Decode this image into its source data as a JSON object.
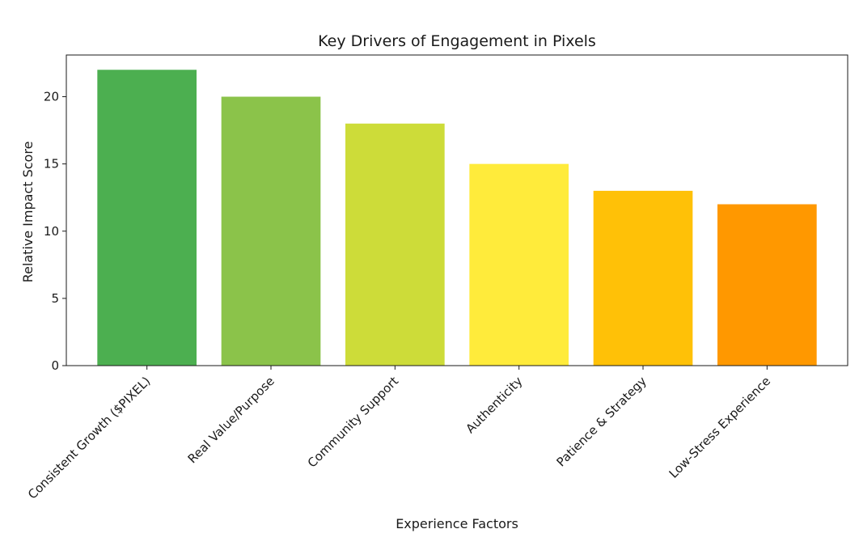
{
  "chart_data": {
    "type": "bar",
    "title": "Key Drivers of Engagement in Pixels",
    "xlabel": "Experience Factors",
    "ylabel": "Relative Impact Score",
    "categories": [
      "Consistent Growth ($PIXEL)",
      "Real Value/Purpose",
      "Community Support",
      "Authenticity",
      "Patience & Strategy",
      "Low-Stress Experience"
    ],
    "values": [
      22,
      20,
      18,
      15,
      13,
      12
    ],
    "colors": [
      "#4caf50",
      "#8bc34a",
      "#cddc39",
      "#ffeb3b",
      "#ffc107",
      "#ff9800"
    ],
    "ylim": [
      0,
      23.1
    ],
    "yticks": [
      0,
      5,
      10,
      15,
      20
    ],
    "grid": false,
    "legend": "none"
  }
}
